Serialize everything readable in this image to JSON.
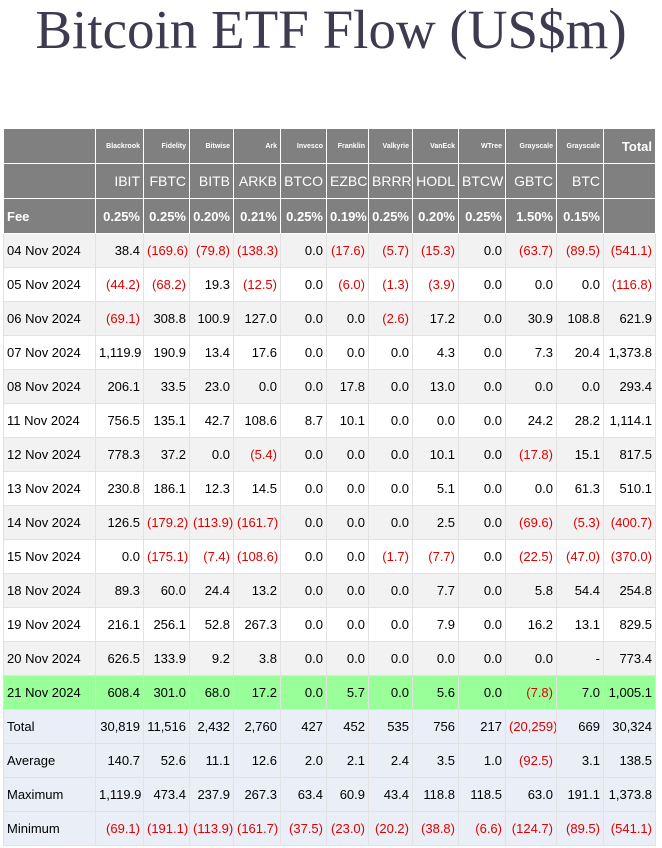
{
  "title": "Bitcoin ETF Flow (US$m)",
  "header": {
    "issuers": [
      "Blackrook",
      "Fidelity",
      "Bitwise",
      "Ark",
      "Invesco",
      "Franklin",
      "Valkyrie",
      "VanEck",
      "WTree",
      "Grayscale",
      "Grayscale"
    ],
    "total_label": "Total",
    "tickers": [
      "IBIT",
      "FBTC",
      "BITB",
      "ARKB",
      "BTCO",
      "EZBC",
      "BRRR",
      "HODL",
      "BTCW",
      "GBTC",
      "BTC"
    ],
    "fee_label": "Fee",
    "fees": [
      "0.25%",
      "0.25%",
      "0.20%",
      "0.21%",
      "0.25%",
      "0.19%",
      "0.25%",
      "0.20%",
      "0.25%",
      "1.50%",
      "0.15%"
    ]
  },
  "rows": [
    [
      "04 Nov 2024",
      "38.4",
      "(169.6)",
      "(79.8)",
      "(138.3)",
      "0.0",
      "(17.6)",
      "(5.7)",
      "(15.3)",
      "0.0",
      "(63.7)",
      "(89.5)",
      "(541.1)"
    ],
    [
      "05 Nov 2024",
      "(44.2)",
      "(68.2)",
      "19.3",
      "(12.5)",
      "0.0",
      "(6.0)",
      "(1.3)",
      "(3.9)",
      "0.0",
      "0.0",
      "0.0",
      "(116.8)"
    ],
    [
      "06 Nov 2024",
      "(69.1)",
      "308.8",
      "100.9",
      "127.0",
      "0.0",
      "0.0",
      "(2.6)",
      "17.2",
      "0.0",
      "30.9",
      "108.8",
      "621.9"
    ],
    [
      "07 Nov 2024",
      "1,119.9",
      "190.9",
      "13.4",
      "17.6",
      "0.0",
      "0.0",
      "0.0",
      "4.3",
      "0.0",
      "7.3",
      "20.4",
      "1,373.8"
    ],
    [
      "08 Nov 2024",
      "206.1",
      "33.5",
      "23.0",
      "0.0",
      "0.0",
      "17.8",
      "0.0",
      "13.0",
      "0.0",
      "0.0",
      "0.0",
      "293.4"
    ],
    [
      "11 Nov 2024",
      "756.5",
      "135.1",
      "42.7",
      "108.6",
      "8.7",
      "10.1",
      "0.0",
      "0.0",
      "0.0",
      "24.2",
      "28.2",
      "1,114.1"
    ],
    [
      "12 Nov 2024",
      "778.3",
      "37.2",
      "0.0",
      "(5.4)",
      "0.0",
      "0.0",
      "0.0",
      "10.1",
      "0.0",
      "(17.8)",
      "15.1",
      "817.5"
    ],
    [
      "13 Nov 2024",
      "230.8",
      "186.1",
      "12.3",
      "14.5",
      "0.0",
      "0.0",
      "0.0",
      "5.1",
      "0.0",
      "0.0",
      "61.3",
      "510.1"
    ],
    [
      "14 Nov 2024",
      "126.5",
      "(179.2)",
      "(113.9)",
      "(161.7)",
      "0.0",
      "0.0",
      "0.0",
      "2.5",
      "0.0",
      "(69.6)",
      "(5.3)",
      "(400.7)"
    ],
    [
      "15 Nov 2024",
      "0.0",
      "(175.1)",
      "(7.4)",
      "(108.6)",
      "0.0",
      "0.0",
      "(1.7)",
      "(7.7)",
      "0.0",
      "(22.5)",
      "(47.0)",
      "(370.0)"
    ],
    [
      "18 Nov 2024",
      "89.3",
      "60.0",
      "24.4",
      "13.2",
      "0.0",
      "0.0",
      "0.0",
      "7.7",
      "0.0",
      "5.8",
      "54.4",
      "254.8"
    ],
    [
      "19 Nov 2024",
      "216.1",
      "256.1",
      "52.8",
      "267.3",
      "0.0",
      "0.0",
      "0.0",
      "7.9",
      "0.0",
      "16.2",
      "13.1",
      "829.5"
    ],
    [
      "20 Nov 2024",
      "626.5",
      "133.9",
      "9.2",
      "3.8",
      "0.0",
      "0.0",
      "0.0",
      "0.0",
      "0.0",
      "0.0",
      "-",
      "773.4"
    ],
    [
      "21 Nov 2024",
      "608.4",
      "301.0",
      "68.0",
      "17.2",
      "0.0",
      "5.7",
      "0.0",
      "5.6",
      "0.0",
      "(7.8)",
      "7.0",
      "1,005.1"
    ]
  ],
  "summary": [
    [
      "Total",
      "30,819",
      "11,516",
      "2,432",
      "2,760",
      "427",
      "452",
      "535",
      "756",
      "217",
      "(20,259)",
      "669",
      "30,324"
    ],
    [
      "Average",
      "140.7",
      "52.6",
      "11.1",
      "12.6",
      "2.0",
      "2.1",
      "2.4",
      "3.5",
      "1.0",
      "(92.5)",
      "3.1",
      "138.5"
    ],
    [
      "Maximum",
      "1,119.9",
      "473.4",
      "237.9",
      "267.3",
      "63.4",
      "60.9",
      "43.4",
      "118.8",
      "118.5",
      "63.0",
      "191.1",
      "1,373.8"
    ],
    [
      "Minimum",
      "(69.1)",
      "(191.1)",
      "(113.9)",
      "(161.7)",
      "(37.5)",
      "(23.0)",
      "(20.2)",
      "(38.8)",
      "(6.6)",
      "(124.7)",
      "(89.5)",
      "(541.1)"
    ]
  ]
}
